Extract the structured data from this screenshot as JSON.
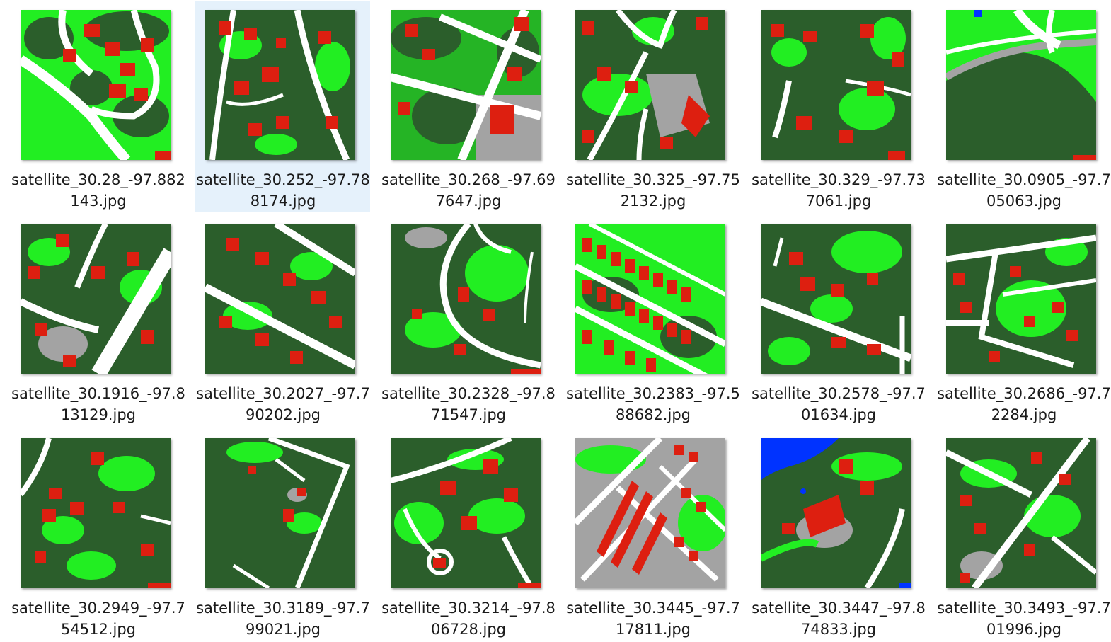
{
  "palette": {
    "trees": "#2b5e2b",
    "grass": "#22ee22",
    "roads": "#ffffff",
    "buildings": "#dd1f10",
    "bare": "#a3a3a3",
    "water": "#0033ff",
    "selected_bg": "#e5f1fb"
  },
  "files": [
    {
      "name": "satellite_30.28_-97.882143.jpg",
      "line1": "satellite_30.28_-97.882",
      "line2": "143.jpg",
      "selected": false
    },
    {
      "name": "satellite_30.252_-97.788174.jpg",
      "line1": "satellite_30.252_-97.78",
      "line2": "8174.jpg",
      "selected": true
    },
    {
      "name": "satellite_30.268_-97.697647.jpg",
      "line1": "satellite_30.268_-97.69",
      "line2": "7647.jpg",
      "selected": false
    },
    {
      "name": "satellite_30.325_-97.752132.jpg",
      "line1": "satellite_30.325_-97.75",
      "line2": "2132.jpg",
      "selected": false
    },
    {
      "name": "satellite_30.329_-97.737061.jpg",
      "line1": "satellite_30.329_-97.73",
      "line2": "7061.jpg",
      "selected": false
    },
    {
      "name": "satellite_30.0905_-97.705063.jpg",
      "line1": "satellite_30.0905_-97.7",
      "line2": "05063.jpg",
      "selected": false
    },
    {
      "name": "satellite_30.1916_-97.813129.jpg",
      "line1": "satellite_30.1916_-97.8",
      "line2": "13129.jpg",
      "selected": false
    },
    {
      "name": "satellite_30.2027_-97.790202.jpg",
      "line1": "satellite_30.2027_-97.7",
      "line2": "90202.jpg",
      "selected": false
    },
    {
      "name": "satellite_30.2328_-97.871547.jpg",
      "line1": "satellite_30.2328_-97.8",
      "line2": "71547.jpg",
      "selected": false
    },
    {
      "name": "satellite_30.2383_-97.588682.jpg",
      "line1": "satellite_30.2383_-97.5",
      "line2": "88682.jpg",
      "selected": false
    },
    {
      "name": "satellite_30.2578_-97.701634.jpg",
      "line1": "satellite_30.2578_-97.7",
      "line2": "01634.jpg",
      "selected": false
    },
    {
      "name": "satellite_30.2686_-97.72284.jpg",
      "line1": "satellite_30.2686_-97.7",
      "line2": "2284.jpg",
      "selected": false
    },
    {
      "name": "satellite_30.2949_-97.754512.jpg",
      "line1": "satellite_30.2949_-97.7",
      "line2": "54512.jpg",
      "selected": false
    },
    {
      "name": "satellite_30.3189_-97.799021.jpg",
      "line1": "satellite_30.3189_-97.7",
      "line2": "99021.jpg",
      "selected": false
    },
    {
      "name": "satellite_30.3214_-97.806728.jpg",
      "line1": "satellite_30.3214_-97.8",
      "line2": "06728.jpg",
      "selected": false
    },
    {
      "name": "satellite_30.3445_-97.717811.jpg",
      "line1": "satellite_30.3445_-97.7",
      "line2": "17811.jpg",
      "selected": false
    },
    {
      "name": "satellite_30.3447_-97.874833.jpg",
      "line1": "satellite_30.3447_-97.8",
      "line2": "74833.jpg",
      "selected": false
    },
    {
      "name": "satellite_30.3493_-97.701996.jpg",
      "line1": "satellite_30.3493_-97.7",
      "line2": "01996.jpg",
      "selected": false
    }
  ]
}
